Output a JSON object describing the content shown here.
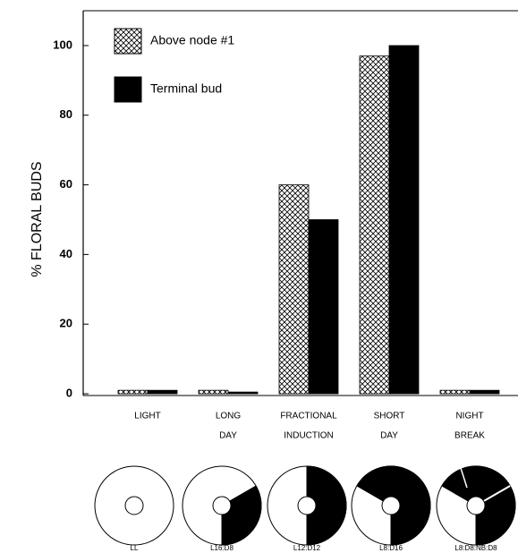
{
  "chart_data": {
    "type": "bar",
    "y_label": "% FLORAL BUDS",
    "categories": [
      [
        "LIGHT"
      ],
      [
        "LONG",
        "DAY"
      ],
      [
        "FRACTIONAL",
        "INDUCTION"
      ],
      [
        "SHORT",
        "DAY"
      ],
      [
        "NIGHT",
        "BREAK"
      ]
    ],
    "series": [
      {
        "name": "Above node #1",
        "color": "#000000",
        "fill": "crosshatch",
        "values": [
          1,
          1,
          60,
          97,
          1
        ]
      },
      {
        "name": "Terminal bud",
        "color": "#000000",
        "fill": "solid",
        "values": [
          1,
          0.5,
          50,
          100,
          1
        ]
      }
    ],
    "ylim": [
      -0.5,
      110
    ],
    "yticks": [
      0,
      20,
      40,
      60,
      80,
      100
    ]
  },
  "photoperiod_labels": [
    "LL",
    "L16:D8",
    "L12:D12",
    "L8:D16",
    "L8:D8:NB:D8"
  ]
}
